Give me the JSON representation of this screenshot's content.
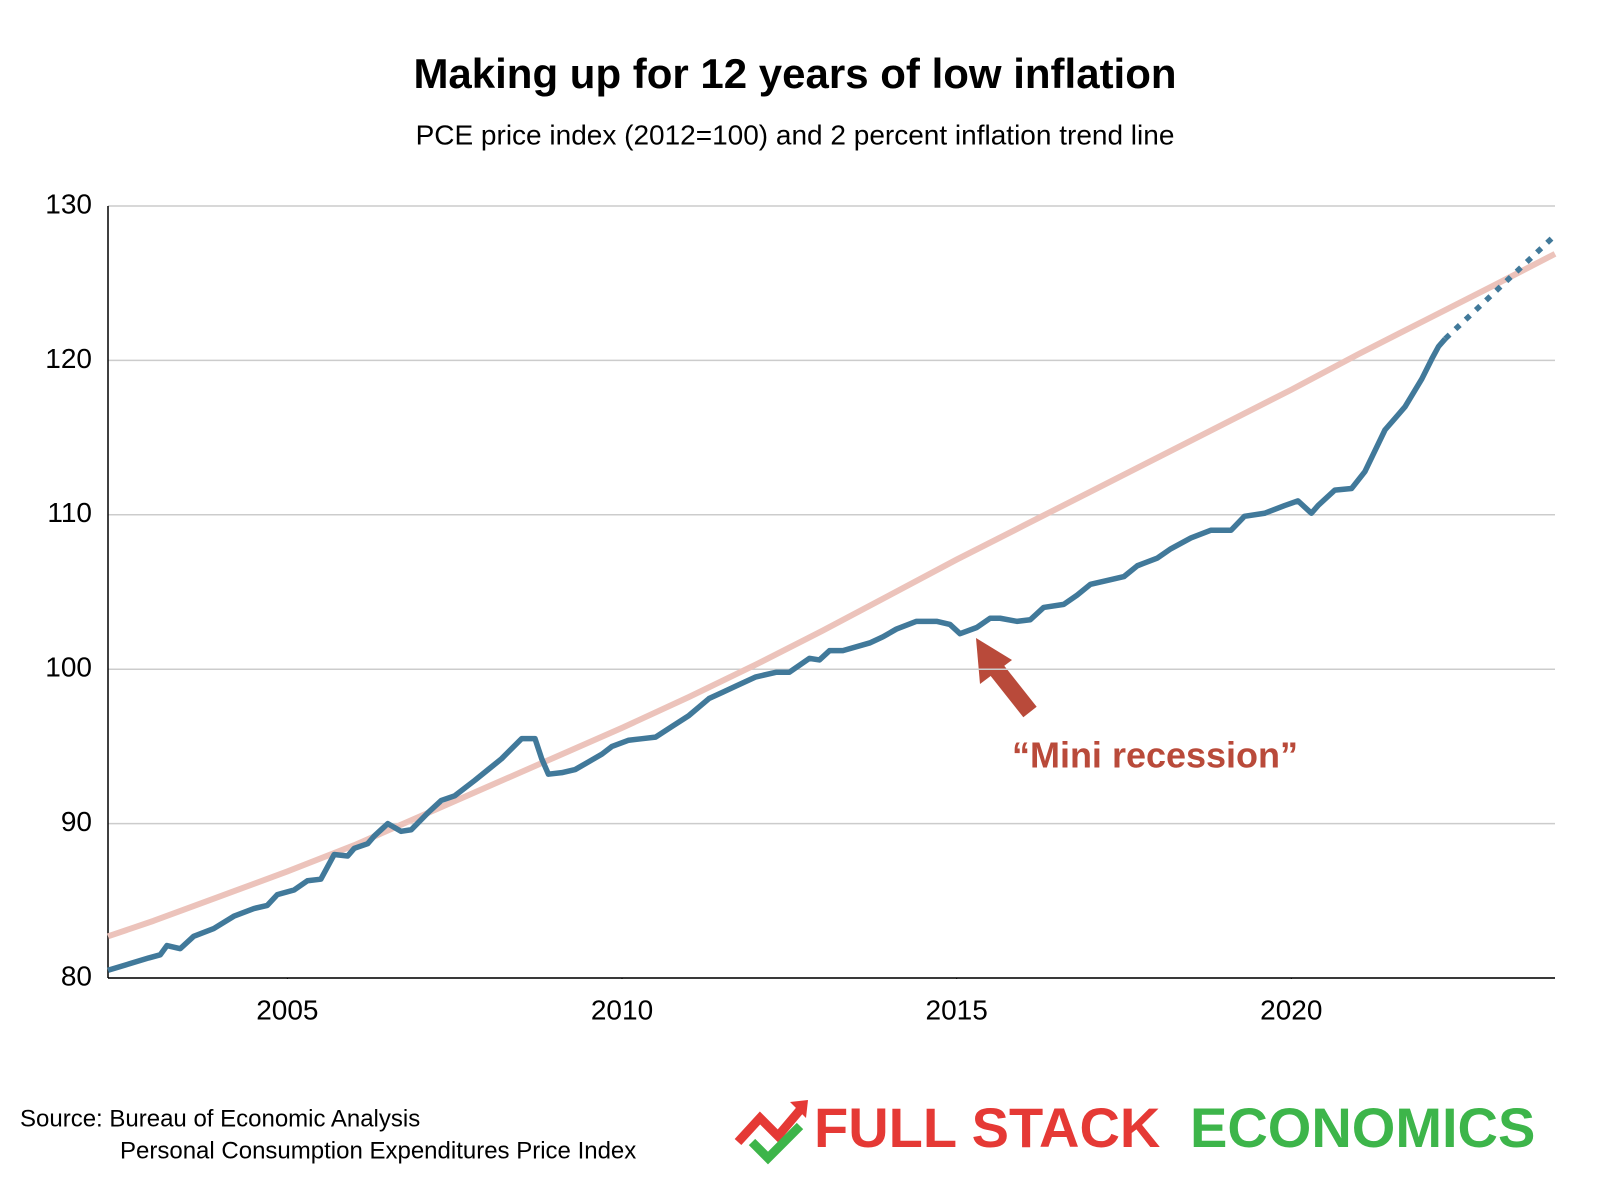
{
  "chart_data": {
    "type": "line",
    "title": "Making up for 12 years of low inflation",
    "subtitle": "PCE price index (2012=100) and 2 percent inflation trend line",
    "xlim": [
      2002.32,
      2023.94
    ],
    "ylim": [
      80,
      130
    ],
    "xticks": [
      2005,
      2010,
      2015,
      2020
    ],
    "yticks": [
      80,
      90,
      100,
      110,
      120,
      130
    ],
    "grid": true,
    "series": [
      {
        "color": "#ecc3bb",
        "style": "solid",
        "x": [
          2002.32,
          2003,
          2004,
          2005,
          2006,
          2007,
          2008,
          2009,
          2010,
          2011,
          2012,
          2013,
          2014,
          2015,
          2016,
          2017,
          2018,
          2019,
          2020,
          2021,
          2022,
          2023,
          2023.94
        ],
        "values": [
          82.7,
          83.7,
          85.3,
          86.9,
          88.6,
          90.5,
          92.4,
          94.3,
          96.2,
          98.2,
          100.3,
          102.5,
          104.8,
          107.1,
          109.3,
          111.5,
          113.7,
          115.9,
          118.1,
          120.4,
          122.6,
          124.8,
          126.9
        ]
      },
      {
        "color": "#41799a",
        "style": "solid",
        "x": [
          2002.32,
          2002.93,
          2003.1,
          2003.2,
          2003.4,
          2003.6,
          2003.9,
          2004.2,
          2004.5,
          2004.7,
          2004.85,
          2005.1,
          2005.3,
          2005.5,
          2005.6,
          2005.7,
          2005.9,
          2006.0,
          2006.2,
          2006.3,
          2006.5,
          2006.7,
          2006.85,
          2007.1,
          2007.3,
          2007.5,
          2007.8,
          2008.0,
          2008.2,
          2008.5,
          2008.7,
          2008.8,
          2008.9,
          2009.1,
          2009.3,
          2009.5,
          2009.7,
          2009.85,
          2010.1,
          2010.3,
          2010.5,
          2010.75,
          2011.0,
          2011.3,
          2011.5,
          2011.7,
          2012.0,
          2012.3,
          2012.5,
          2012.8,
          2012.95,
          2013.1,
          2013.3,
          2013.7,
          2013.9,
          2014.1,
          2014.4,
          2014.7,
          2014.9,
          2015.05,
          2015.3,
          2015.5,
          2015.65,
          2015.9,
          2016.1,
          2016.3,
          2016.6,
          2016.8,
          2017.0,
          2017.3,
          2017.5,
          2017.7,
          2018.0,
          2018.2,
          2018.5,
          2018.8,
          2019.1,
          2019.3,
          2019.6,
          2019.9,
          2020.1,
          2020.3,
          2020.4,
          2020.65,
          2020.9,
          2021.1,
          2021.4,
          2021.7,
          2021.95,
          2022.1,
          2022.2,
          2022.3
        ],
        "values": [
          80.5,
          81.3,
          81.5,
          82.1,
          81.9,
          82.7,
          83.2,
          84.0,
          84.5,
          84.7,
          85.4,
          85.7,
          86.3,
          86.4,
          87.2,
          88.0,
          87.9,
          88.4,
          88.7,
          89.2,
          90.0,
          89.5,
          89.6,
          90.7,
          91.5,
          91.8,
          92.8,
          93.5,
          94.2,
          95.5,
          95.5,
          94.2,
          93.2,
          93.3,
          93.5,
          94.0,
          94.5,
          95.0,
          95.4,
          95.5,
          95.6,
          96.3,
          97.0,
          98.1,
          98.5,
          98.9,
          99.5,
          99.8,
          99.8,
          100.7,
          100.6,
          101.2,
          101.2,
          101.7,
          102.1,
          102.6,
          103.1,
          103.1,
          102.9,
          102.3,
          102.7,
          103.3,
          103.3,
          103.1,
          103.2,
          104.0,
          104.2,
          104.8,
          105.5,
          105.8,
          106.0,
          106.7,
          107.2,
          107.8,
          108.5,
          109.0,
          109.0,
          109.9,
          110.1,
          110.6,
          110.9,
          110.1,
          110.6,
          111.6,
          111.7,
          112.8,
          115.5,
          117.0,
          118.8,
          120.1,
          120.9,
          121.4
        ]
      },
      {
        "color": "#41799a",
        "style": "dotted",
        "x": [
          2022.3,
          2023.94
        ],
        "values": [
          121.4,
          128.1
        ]
      }
    ],
    "annotation": "“Mini recession”",
    "source": [
      "Source: Bureau of Economic Analysis",
      "Personal Consumption Expenditures Price Index"
    ],
    "logo": [
      "FULL STACK",
      "ECONOMICS"
    ]
  }
}
